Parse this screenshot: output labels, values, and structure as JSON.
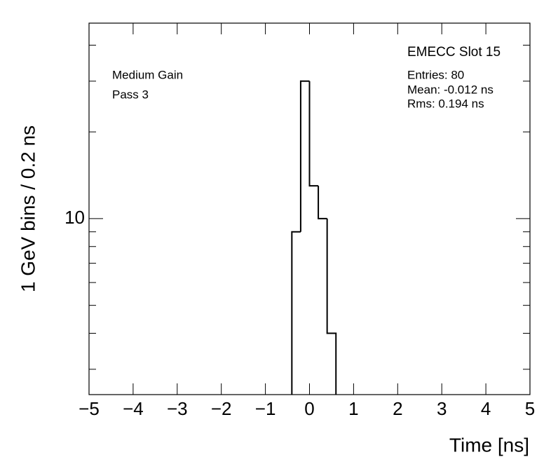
{
  "chart_data": {
    "type": "histogram",
    "bins": [
      -0.4,
      -0.2,
      0,
      0.2,
      0.4,
      0.6
    ],
    "values": [
      9,
      30,
      13,
      10,
      4
    ],
    "color": "#000000",
    "xlabel": "Time [ns]",
    "ylabel": "1 GeV bins / 0.2 ns",
    "xlim": [
      -5,
      5
    ],
    "xticks": [
      {
        "value": -5,
        "label": "−5"
      },
      {
        "value": -4,
        "label": "−4"
      },
      {
        "value": -3,
        "label": "−3"
      },
      {
        "value": -2,
        "label": "−2"
      },
      {
        "value": -1,
        "label": "−1"
      },
      0,
      1,
      2,
      3,
      4,
      5
    ],
    "ylim": [
      2.45,
      47.7
    ],
    "ylog": true,
    "yticks": [
      10
    ],
    "yminorticks": [
      3,
      4,
      5,
      6,
      7,
      8,
      9,
      20,
      30,
      40
    ],
    "annotations": [
      "Medium Gain",
      "Pass 3"
    ],
    "stats": {
      "title": "EMECC Slot 15",
      "lines": [
        "Entries: 80",
        "Mean: -0.012 ns",
        "Rms: 0.194 ns"
      ]
    }
  }
}
